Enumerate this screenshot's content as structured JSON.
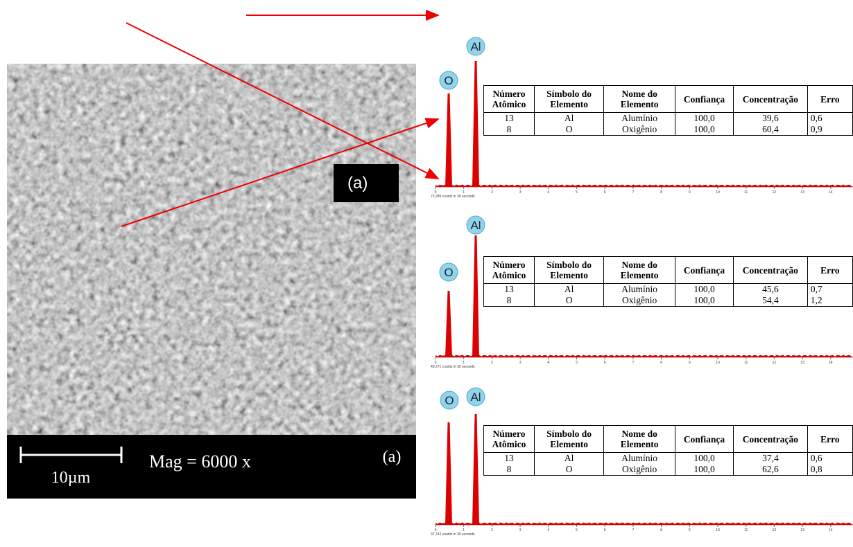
{
  "sem": {
    "scale_bar": "10µm",
    "magnification": "Mag = 6000 x",
    "label": "(a)"
  },
  "callout": "(a)",
  "x_ticks": [
    0,
    1,
    2,
    3,
    4,
    5,
    6,
    7,
    8,
    9,
    10,
    11,
    12,
    13,
    14
  ],
  "table_header": [
    "Número Atômico",
    "Símbolo do Elemento",
    "Nome do Elemento",
    "Confiança",
    "Concentração",
    "Erro"
  ],
  "spectra": [
    {
      "peaks": [
        "O",
        "Al"
      ],
      "counts": "73,285 counts in 30 seconds",
      "rows": [
        [
          "13",
          "Al",
          "Alumínio",
          "100,0",
          "39,6",
          "0,6"
        ],
        [
          "8",
          "O",
          "Oxigênio",
          "100,0",
          "60,4",
          "0,9"
        ]
      ]
    },
    {
      "peaks": [
        "O",
        "Al"
      ],
      "counts": "49,271 counts in 30 seconds",
      "rows": [
        [
          "13",
          "Al",
          "Alumínio",
          "100,0",
          "45,6",
          "0,7"
        ],
        [
          "8",
          "O",
          "Oxigênio",
          "100,0",
          "54,4",
          "1,2"
        ]
      ]
    },
    {
      "peaks": [
        "O",
        "Al"
      ],
      "counts": "37,742 counts in 30 seconds",
      "rows": [
        [
          "13",
          "Al",
          "Alumínio",
          "100,0",
          "37,4",
          "0,6"
        ],
        [
          "8",
          "O",
          "Oxigênio",
          "100,0",
          "62,6",
          "0,8"
        ]
      ]
    }
  ]
}
